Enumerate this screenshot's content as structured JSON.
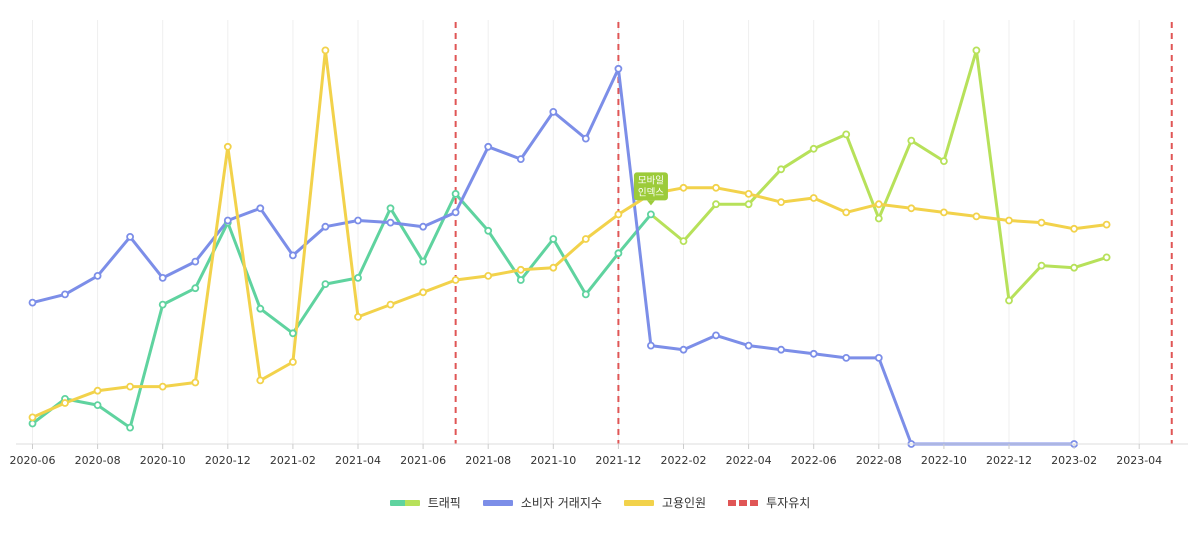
{
  "chart_data": {
    "type": "line",
    "x_ticks": [
      "2020-06",
      "2020-08",
      "2020-10",
      "2020-12",
      "2021-02",
      "2021-04",
      "2021-06",
      "2021-08",
      "2021-10",
      "2021-12",
      "2022-02",
      "2022-04",
      "2022-06",
      "2022-08",
      "2022-10",
      "2022-12",
      "2023-02",
      "2023-04"
    ],
    "ylim": [
      0,
      100
    ],
    "grid": "vertical",
    "legend_position": "bottom",
    "series": [
      {
        "name": "트래픽",
        "color": "#5fd39f",
        "color_after_annotation": "#b7e15a",
        "points": [
          [
            "2020-06",
            5
          ],
          [
            "2020-07",
            11
          ],
          [
            "2020-08",
            9.5
          ],
          [
            "2020-09",
            4
          ],
          [
            "2020-10",
            34
          ],
          [
            "2020-11",
            38
          ],
          [
            "2020-12",
            54
          ],
          [
            "2021-01",
            33
          ],
          [
            "2021-02",
            27
          ],
          [
            "2021-03",
            39
          ],
          [
            "2021-04",
            40.5
          ],
          [
            "2021-05",
            57.5
          ],
          [
            "2021-06",
            44.5
          ],
          [
            "2021-07",
            61
          ],
          [
            "2021-08",
            52
          ],
          [
            "2021-09",
            40
          ],
          [
            "2021-10",
            50
          ],
          [
            "2021-11",
            36.5
          ],
          [
            "2021-12",
            46.5
          ],
          [
            "2022-01",
            56
          ],
          [
            "2022-02",
            49.5
          ],
          [
            "2022-03",
            58.5
          ],
          [
            "2022-04",
            58.5
          ],
          [
            "2022-05",
            67
          ],
          [
            "2022-06",
            72
          ],
          [
            "2022-07",
            75.5
          ],
          [
            "2022-08",
            55
          ],
          [
            "2022-09",
            74
          ],
          [
            "2022-10",
            69
          ],
          [
            "2022-11",
            96
          ],
          [
            "2022-12",
            35
          ],
          [
            "2023-01",
            43.5
          ],
          [
            "2023-02",
            43
          ],
          [
            "2023-03",
            45.5
          ]
        ]
      },
      {
        "name": "소비자 거래지수",
        "color": "#7c8ee8",
        "points": [
          [
            "2020-06",
            34.5
          ],
          [
            "2020-07",
            36.5
          ],
          [
            "2020-08",
            41
          ],
          [
            "2020-09",
            50.5
          ],
          [
            "2020-10",
            40.5
          ],
          [
            "2020-11",
            44.5
          ],
          [
            "2020-12",
            54.5
          ],
          [
            "2021-01",
            57.5
          ],
          [
            "2021-02",
            46
          ],
          [
            "2021-03",
            53
          ],
          [
            "2021-04",
            54.5
          ],
          [
            "2021-05",
            54
          ],
          [
            "2021-06",
            53
          ],
          [
            "2021-07",
            56.5
          ],
          [
            "2021-08",
            72.5
          ],
          [
            "2021-09",
            69.5
          ],
          [
            "2021-10",
            81
          ],
          [
            "2021-11",
            74.5
          ],
          [
            "2021-12",
            91.5
          ],
          [
            "2022-01",
            24
          ],
          [
            "2022-02",
            23
          ],
          [
            "2022-03",
            26.5
          ],
          [
            "2022-04",
            24
          ],
          [
            "2022-05",
            23
          ],
          [
            "2022-06",
            22
          ],
          [
            "2022-07",
            21
          ],
          [
            "2022-08",
            21
          ],
          [
            "2022-09",
            0
          ],
          [
            "2023-02",
            0
          ]
        ]
      },
      {
        "name": "고용인원",
        "color": "#f2d24b",
        "points": [
          [
            "2020-06",
            6.5
          ],
          [
            "2020-07",
            10
          ],
          [
            "2020-08",
            13
          ],
          [
            "2020-09",
            14
          ],
          [
            "2020-10",
            14
          ],
          [
            "2020-11",
            15
          ],
          [
            "2020-12",
            72.5
          ],
          [
            "2021-01",
            15.5
          ],
          [
            "2021-02",
            20
          ],
          [
            "2021-03",
            96
          ],
          [
            "2021-04",
            31
          ],
          [
            "2021-05",
            34
          ],
          [
            "2021-06",
            37
          ],
          [
            "2021-07",
            40
          ],
          [
            "2021-08",
            41
          ],
          [
            "2021-09",
            42.5
          ],
          [
            "2021-10",
            43
          ],
          [
            "2021-11",
            50
          ],
          [
            "2021-12",
            56
          ],
          [
            "2022-01",
            61
          ],
          [
            "2022-02",
            62.5
          ],
          [
            "2022-03",
            62.5
          ],
          [
            "2022-04",
            61
          ],
          [
            "2022-05",
            59
          ],
          [
            "2022-06",
            60
          ],
          [
            "2022-07",
            56.5
          ],
          [
            "2022-08",
            58.5
          ],
          [
            "2022-09",
            57.5
          ],
          [
            "2022-10",
            56.5
          ],
          [
            "2022-11",
            55.5
          ],
          [
            "2022-12",
            54.5
          ],
          [
            "2023-01",
            54
          ],
          [
            "2023-02",
            52.5
          ],
          [
            "2023-03",
            53.5
          ]
        ]
      }
    ],
    "vertical_markers": {
      "name": "투자유치",
      "color": "#e05656",
      "dates": [
        "2021-07",
        "2021-12",
        "2023-05"
      ]
    },
    "annotations": [
      {
        "label_line1": "모바일",
        "label_line2": "인덱스",
        "date": "2022-01",
        "value": 56,
        "color": "#9ccb3a"
      }
    ]
  }
}
